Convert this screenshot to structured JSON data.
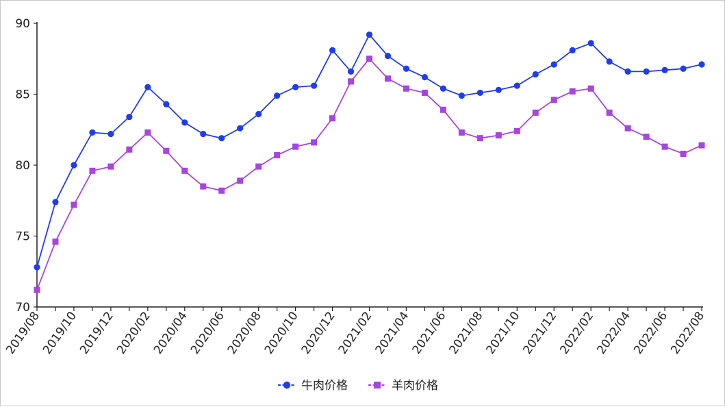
{
  "chart_data": {
    "type": "line",
    "x": [
      "2019/08",
      "2019/09",
      "2019/10",
      "2019/11",
      "2019/12",
      "2020/01",
      "2020/02",
      "2020/03",
      "2020/04",
      "2020/05",
      "2020/06",
      "2020/07",
      "2020/08",
      "2020/09",
      "2020/10",
      "2020/11",
      "2020/12",
      "2021/01",
      "2021/02",
      "2021/03",
      "2021/04",
      "2021/05",
      "2021/06",
      "2021/07",
      "2021/08",
      "2021/09",
      "2021/10",
      "2021/11",
      "2021/12",
      "2022/01",
      "2022/02",
      "2022/03",
      "2022/04",
      "2022/05",
      "2022/06",
      "2022/07",
      "2022/08"
    ],
    "x_tick_labels": [
      "2019/08",
      "2019/10",
      "2019/12",
      "2020/02",
      "2020/04",
      "2020/06",
      "2020/08",
      "2020/10",
      "2020/12",
      "2021/02",
      "2021/04",
      "2021/06",
      "2021/08",
      "2021/10",
      "2021/12",
      "2022/02",
      "2022/04",
      "2022/06",
      "2022/08"
    ],
    "y_ticks": [
      "70",
      "75",
      "80",
      "85",
      "90"
    ],
    "ylim": [
      70,
      90
    ],
    "grid": false,
    "legend_position": "bottom-center",
    "series": [
      {
        "name": "牛肉价格",
        "color": "#1f3cf0",
        "marker": "circle",
        "values": [
          72.8,
          77.4,
          80.0,
          82.3,
          82.2,
          83.4,
          85.5,
          84.3,
          83.0,
          82.2,
          81.9,
          82.6,
          83.6,
          84.9,
          85.5,
          85.6,
          88.1,
          86.6,
          89.2,
          87.7,
          86.8,
          86.2,
          85.4,
          84.9,
          85.1,
          85.3,
          85.6,
          86.4,
          87.1,
          88.1,
          88.6,
          87.3,
          86.6,
          86.6,
          86.7,
          86.8,
          87.1
        ]
      },
      {
        "name": "羊肉价格",
        "color": "#a745e0",
        "marker": "square",
        "values": [
          71.2,
          74.6,
          77.2,
          79.6,
          79.9,
          81.1,
          82.3,
          81.0,
          79.6,
          78.5,
          78.2,
          78.9,
          79.9,
          80.7,
          81.3,
          81.6,
          83.3,
          85.9,
          87.5,
          86.1,
          85.4,
          85.1,
          83.9,
          82.3,
          81.9,
          82.1,
          82.4,
          83.7,
          84.6,
          85.2,
          85.4,
          83.7,
          82.6,
          82.0,
          81.3,
          80.8,
          81.4
        ]
      }
    ]
  }
}
